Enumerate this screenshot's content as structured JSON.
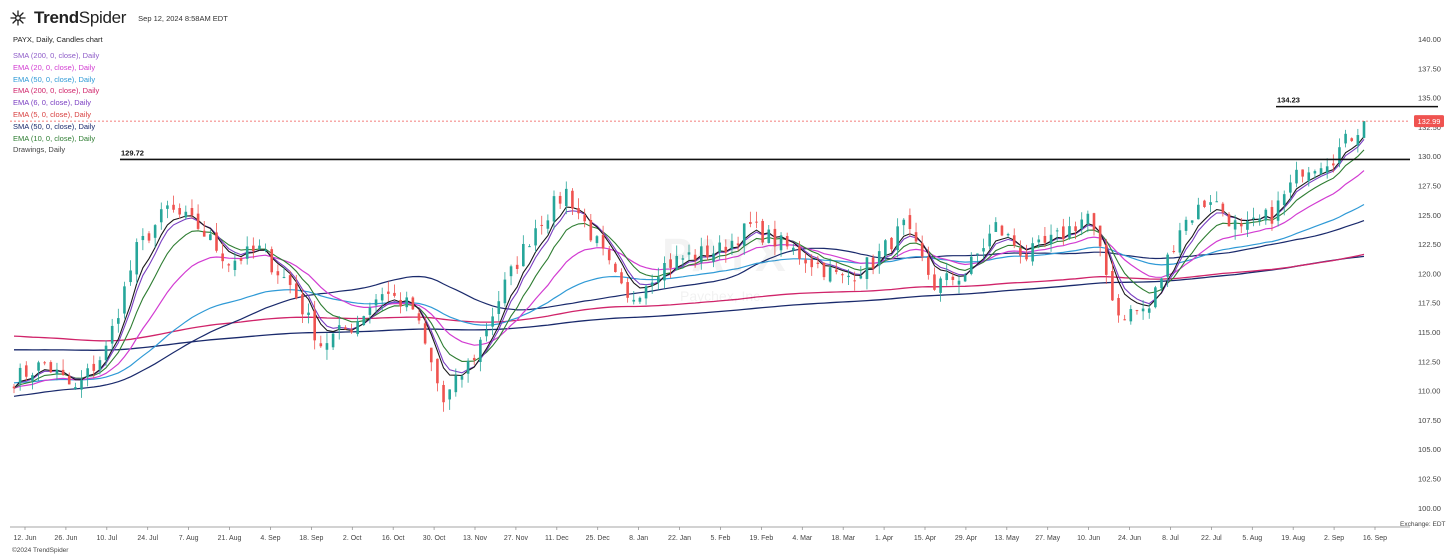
{
  "header": {
    "brand_bold": "Trend",
    "brand_light": "Spider",
    "date": "Sep 12, 2024 8:58AM EDT"
  },
  "chart_title": "PAYX, Daily, Candles chart",
  "legend": [
    {
      "label": "SMA (200, 0, close), Daily",
      "color": "#8e5cc8"
    },
    {
      "label": "EMA (20, 0, close), Daily",
      "color": "#d23cd2"
    },
    {
      "label": "EMA (50, 0, close), Daily",
      "color": "#2f9ad6"
    },
    {
      "label": "EMA (200, 0, close), Daily",
      "color": "#d0246a"
    },
    {
      "label": "EMA (6, 0, close), Daily",
      "color": "#7a3ec2"
    },
    {
      "label": "EMA (5, 0, close), Daily",
      "color": "#d84040"
    },
    {
      "label": "SMA (50, 0, close), Daily",
      "color": "#1a2a6c"
    },
    {
      "label": "EMA (10, 0, close), Daily",
      "color": "#2e7d32"
    },
    {
      "label": "Drawings, Daily",
      "color": "#444444"
    }
  ],
  "watermark": "PAYX",
  "watermark_sub": "Paychex, Inc.",
  "footer": {
    "copyright": "©2024 TrendSpider",
    "exchange": "Exchange: EDT"
  },
  "colors": {
    "up": "#26a69a",
    "down": "#ef5350",
    "last_price_tag": "#ef5350"
  },
  "chart_data": {
    "type": "candlestick",
    "symbol": "PAYX",
    "timeframe": "Daily",
    "y_ticks": [
      100.0,
      102.5,
      105.0,
      107.5,
      110.0,
      112.5,
      115.0,
      117.5,
      120.0,
      122.5,
      125.0,
      127.5,
      130.0,
      132.5,
      135.0,
      137.5,
      140.0
    ],
    "ylim": [
      98.5,
      141.8
    ],
    "x_labels": [
      "12. Jun",
      "26. Jun",
      "10. Jul",
      "24. Jul",
      "7. Aug",
      "21. Aug",
      "4. Sep",
      "18. Sep",
      "2. Oct",
      "16. Oct",
      "30. Oct",
      "13. Nov",
      "27. Nov",
      "11. Dec",
      "25. Dec",
      "8. Jan",
      "22. Jan",
      "5. Feb",
      "19. Feb",
      "4. Mar",
      "18. Mar",
      "1. Apr",
      "15. Apr",
      "29. Apr",
      "13. May",
      "27. May",
      "10. Jun",
      "24. Jun",
      "8. Jul",
      "22. Jul",
      "5. Aug",
      "19. Aug",
      "2. Sep",
      "16. Sep"
    ],
    "close_path": [
      {
        "week": 0,
        "close": 111.0
      },
      {
        "week": 1,
        "close": 112.3
      },
      {
        "week": 2,
        "close": 110.0
      },
      {
        "week": 3,
        "close": 113.5
      },
      {
        "week": 4,
        "close": 122.0
      },
      {
        "week": 5,
        "close": 125.5
      },
      {
        "week": 6,
        "close": 124.0
      },
      {
        "week": 7,
        "close": 121.0
      },
      {
        "week": 8,
        "close": 122.0
      },
      {
        "week": 9,
        "close": 119.0
      },
      {
        "week": 10,
        "close": 114.0
      },
      {
        "week": 11,
        "close": 115.5
      },
      {
        "week": 12,
        "close": 118.5
      },
      {
        "week": 13,
        "close": 117.0
      },
      {
        "week": 14,
        "close": 109.0
      },
      {
        "week": 15,
        "close": 113.0
      },
      {
        "week": 16,
        "close": 119.0
      },
      {
        "week": 17,
        "close": 124.0
      },
      {
        "week": 18,
        "close": 127.0
      },
      {
        "week": 19,
        "close": 122.5
      },
      {
        "week": 20,
        "close": 117.5
      },
      {
        "week": 21,
        "close": 120.5
      },
      {
        "week": 22,
        "close": 121.5
      },
      {
        "week": 23,
        "close": 122.0
      },
      {
        "week": 24,
        "close": 124.0
      },
      {
        "week": 25,
        "close": 122.5
      },
      {
        "week": 26,
        "close": 121.0
      },
      {
        "week": 27,
        "close": 119.5
      },
      {
        "week": 28,
        "close": 121.0
      },
      {
        "week": 29,
        "close": 124.0
      },
      {
        "week": 30,
        "close": 119.0
      },
      {
        "week": 31,
        "close": 120.0
      },
      {
        "week": 32,
        "close": 124.0
      },
      {
        "week": 33,
        "close": 121.5
      },
      {
        "week": 34,
        "close": 123.0
      },
      {
        "week": 35,
        "close": 125.0
      },
      {
        "week": 36,
        "close": 116.5
      },
      {
        "week": 37,
        "close": 117.0
      },
      {
        "week": 38,
        "close": 124.0
      },
      {
        "week": 39,
        "close": 126.5
      },
      {
        "week": 40,
        "close": 123.5
      },
      {
        "week": 41,
        "close": 125.0
      },
      {
        "week": 42,
        "close": 129.0
      },
      {
        "week": 43,
        "close": 130.0
      },
      {
        "week": 44,
        "close": 132.99
      }
    ],
    "indicators": {
      "SMA 200 (end)": 122.8,
      "EMA 200 (end)": 122.6,
      "SMA 50 (end)": 125.0,
      "EMA 50 (end)": 126.5,
      "EMA 20 (end)": 129.5,
      "EMA 10 (end)": 131.0,
      "EMA 6 (end)": 131.8,
      "EMA 5 (end)": 132.0
    },
    "horizontal_lines": [
      {
        "label": "129.72",
        "value": 129.72
      },
      {
        "label": "134.23",
        "value": 134.23
      }
    ],
    "last_price": {
      "label": "132.99",
      "value": 132.99
    }
  }
}
